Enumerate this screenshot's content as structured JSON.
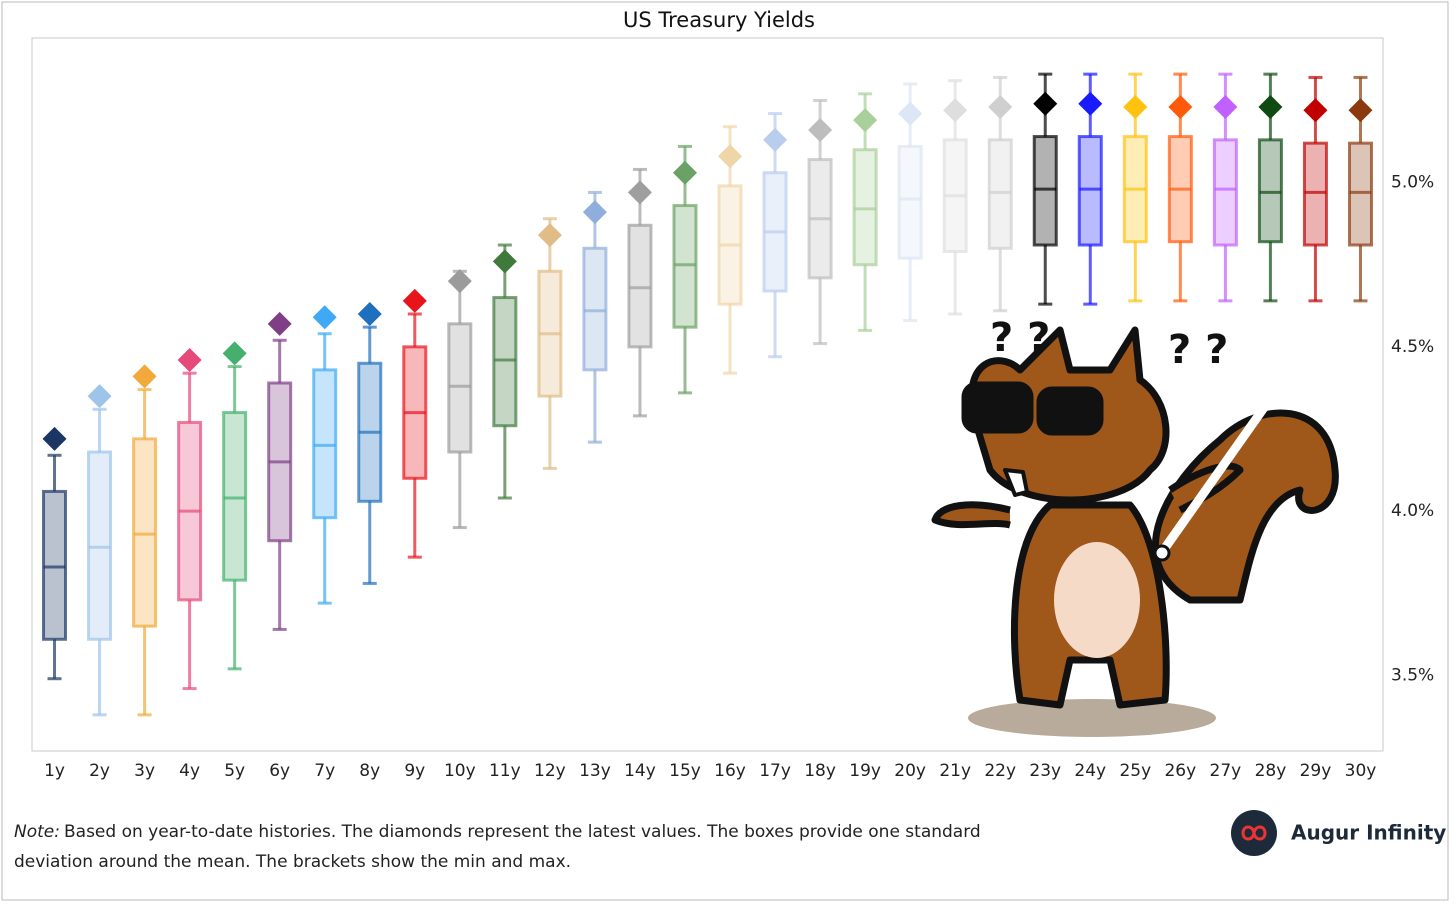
{
  "chart_data": {
    "type": "box",
    "title": "US Treasury Yields",
    "categories": [
      "1y",
      "2y",
      "3y",
      "4y",
      "5y",
      "6y",
      "7y",
      "8y",
      "9y",
      "10y",
      "11y",
      "12y",
      "13y",
      "14y",
      "15y",
      "16y",
      "17y",
      "18y",
      "19y",
      "20y",
      "21y",
      "22y",
      "23y",
      "24y",
      "25y",
      "26y",
      "27y",
      "28y",
      "29y",
      "30y"
    ],
    "stats": [
      {
        "max": 4.17,
        "high": 4.06,
        "mean": 3.83,
        "low": 3.61,
        "min": 3.49,
        "latest": 4.22,
        "color": "#1c3664"
      },
      {
        "max": 4.31,
        "high": 4.18,
        "mean": 3.89,
        "low": 3.61,
        "min": 3.38,
        "latest": 4.35,
        "color": "#9ec4ea"
      },
      {
        "max": 4.37,
        "high": 4.22,
        "mean": 3.93,
        "low": 3.65,
        "min": 3.38,
        "latest": 4.41,
        "color": "#f2a93b"
      },
      {
        "max": 4.42,
        "high": 4.27,
        "mean": 4.0,
        "low": 3.73,
        "min": 3.46,
        "latest": 4.46,
        "color": "#e64a7b"
      },
      {
        "max": 4.44,
        "high": 4.3,
        "mean": 4.04,
        "low": 3.79,
        "min": 3.52,
        "latest": 4.48,
        "color": "#45b06e"
      },
      {
        "max": 4.52,
        "high": 4.39,
        "mean": 4.15,
        "low": 3.91,
        "min": 3.64,
        "latest": 4.57,
        "color": "#7f3f86"
      },
      {
        "max": 4.54,
        "high": 4.43,
        "mean": 4.2,
        "low": 3.98,
        "min": 3.72,
        "latest": 4.59,
        "color": "#3fa9f5"
      },
      {
        "max": 4.56,
        "high": 4.45,
        "mean": 4.24,
        "low": 4.03,
        "min": 3.78,
        "latest": 4.6,
        "color": "#1f6fbf"
      },
      {
        "max": 4.6,
        "high": 4.5,
        "mean": 4.3,
        "low": 4.1,
        "min": 3.86,
        "latest": 4.64,
        "color": "#e8141c"
      },
      {
        "max": 4.73,
        "high": 4.57,
        "mean": 4.38,
        "low": 4.18,
        "min": 3.95,
        "latest": 4.7,
        "color": "#9b9b9b"
      },
      {
        "max": 4.81,
        "high": 4.65,
        "mean": 4.46,
        "low": 4.26,
        "min": 4.04,
        "latest": 4.76,
        "color": "#3f7a3c"
      },
      {
        "max": 4.89,
        "high": 4.73,
        "mean": 4.54,
        "low": 4.35,
        "min": 4.13,
        "latest": 4.84,
        "color": "#e0bc86"
      },
      {
        "max": 4.97,
        "high": 4.8,
        "mean": 4.61,
        "low": 4.43,
        "min": 4.21,
        "latest": 4.91,
        "color": "#90aedb"
      },
      {
        "max": 5.04,
        "high": 4.87,
        "mean": 4.68,
        "low": 4.5,
        "min": 4.29,
        "latest": 4.97,
        "color": "#9e9e9e"
      },
      {
        "max": 5.11,
        "high": 4.93,
        "mean": 4.75,
        "low": 4.56,
        "min": 4.36,
        "latest": 5.03,
        "color": "#6aa164"
      },
      {
        "max": 5.17,
        "high": 4.99,
        "mean": 4.81,
        "low": 4.63,
        "min": 4.42,
        "latest": 5.08,
        "color": "#efd5a8"
      },
      {
        "max": 5.21,
        "high": 5.03,
        "mean": 4.85,
        "low": 4.67,
        "min": 4.47,
        "latest": 5.13,
        "color": "#b9cdee"
      },
      {
        "max": 5.25,
        "high": 5.07,
        "mean": 4.89,
        "low": 4.71,
        "min": 4.51,
        "latest": 5.16,
        "color": "#bdbdbd"
      },
      {
        "max": 5.27,
        "high": 5.1,
        "mean": 4.92,
        "low": 4.75,
        "min": 4.55,
        "latest": 5.19,
        "color": "#a9cf9a"
      },
      {
        "max": 5.3,
        "high": 5.11,
        "mean": 4.95,
        "low": 4.77,
        "min": 4.58,
        "latest": 5.21,
        "color": "#dce6f4"
      },
      {
        "max": 5.31,
        "high": 5.13,
        "mean": 4.96,
        "low": 4.79,
        "min": 4.6,
        "latest": 5.22,
        "color": "#dedede"
      },
      {
        "max": 5.32,
        "high": 5.13,
        "mean": 4.97,
        "low": 4.8,
        "min": 4.61,
        "latest": 5.23,
        "color": "#cfcfcf"
      },
      {
        "max": 5.33,
        "high": 5.14,
        "mean": 4.98,
        "low": 4.81,
        "min": 4.63,
        "latest": 5.24,
        "color": "#000000"
      },
      {
        "max": 5.33,
        "high": 5.14,
        "mean": 4.98,
        "low": 4.81,
        "min": 4.63,
        "latest": 5.24,
        "color": "#1a1aff"
      },
      {
        "max": 5.33,
        "high": 5.14,
        "mean": 4.98,
        "low": 4.82,
        "min": 4.64,
        "latest": 5.23,
        "color": "#ffc20e"
      },
      {
        "max": 5.33,
        "high": 5.14,
        "mean": 4.98,
        "low": 4.82,
        "min": 4.64,
        "latest": 5.23,
        "color": "#ff5a0a"
      },
      {
        "max": 5.33,
        "high": 5.13,
        "mean": 4.98,
        "low": 4.81,
        "min": 4.64,
        "latest": 5.23,
        "color": "#c060ff"
      },
      {
        "max": 5.33,
        "high": 5.13,
        "mean": 4.97,
        "low": 4.82,
        "min": 4.64,
        "latest": 5.23,
        "color": "#0e4a12"
      },
      {
        "max": 5.32,
        "high": 5.12,
        "mean": 4.97,
        "low": 4.81,
        "min": 4.64,
        "latest": 5.22,
        "color": "#c00000"
      },
      {
        "max": 5.32,
        "high": 5.12,
        "mean": 4.97,
        "low": 4.81,
        "min": 4.64,
        "latest": 5.22,
        "color": "#8b3a10"
      }
    ],
    "ylim": [
      3.27,
      5.44
    ],
    "yticks": [
      {
        "value": 3.5,
        "label": "3.5%"
      },
      {
        "value": 4.0,
        "label": "4.0%"
      },
      {
        "value": 4.5,
        "label": "4.5%"
      },
      {
        "value": 5.0,
        "label": "5.0%"
      }
    ],
    "yaxis_side": "right",
    "grid": false,
    "annotations": [
      "? ?",
      "? ?"
    ]
  },
  "note": {
    "label": "Note:",
    "text": "Based on year-to-date histories. The diamonds represent the latest values. The boxes provide one standard",
    "text2": "deviation around the mean. The brackets show the min and max."
  },
  "brand": "Augur Infinity"
}
